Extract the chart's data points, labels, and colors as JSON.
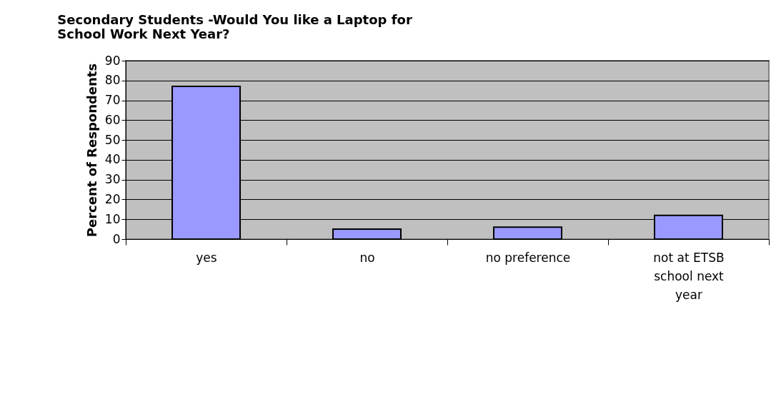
{
  "chart_data": {
    "type": "bar",
    "title": "Secondary Students  -Would You like a Laptop for School Work Next Year?",
    "ylabel": "Percent of Respondents",
    "categories": [
      "yes",
      "no",
      "no preference",
      "not at ETSB school next year"
    ],
    "values": [
      77,
      5,
      6,
      12
    ],
    "color": "#9999ff",
    "ylim": [
      0,
      90
    ],
    "yticks": [
      0,
      10,
      20,
      30,
      40,
      50,
      60,
      70,
      80,
      90
    ],
    "grid": "y"
  }
}
